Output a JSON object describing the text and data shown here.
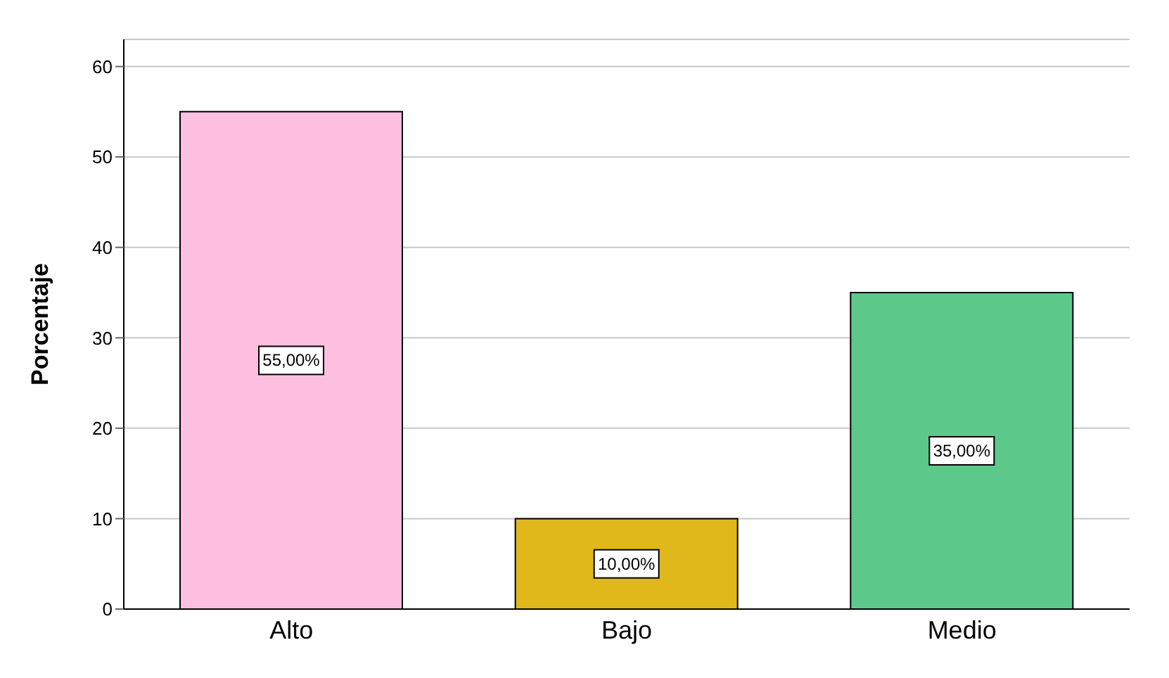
{
  "chart_data": {
    "type": "bar",
    "ylabel": "Porcentaje",
    "categories": [
      "Alto",
      "Bajo",
      "Medio"
    ],
    "values": [
      55,
      10,
      35
    ],
    "colors": [
      "#fdbfdf",
      "#e0b81c",
      "#5cc98b"
    ],
    "value_labels": [
      "55,00%",
      "10,00%",
      "35,00%"
    ],
    "ylim": [
      0,
      63
    ],
    "yticks": [
      0,
      10,
      20,
      30,
      40,
      50,
      60
    ],
    "grid": "y",
    "legend": false
  }
}
